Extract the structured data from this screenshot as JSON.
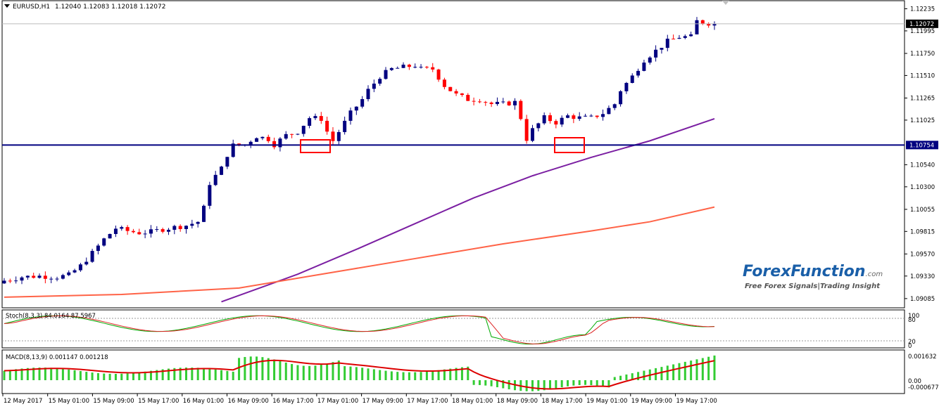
{
  "chart_data": {
    "type": "candlestick",
    "symbol_header": "EURUSD,H1",
    "ohlc_header": "1.12040 1.12083 1.12018 1.12072",
    "price_axis": {
      "ylim": [
        1.09,
        1.123
      ],
      "ticks": [
        "1.12235",
        "1.11995",
        "1.11750",
        "1.11510",
        "1.11265",
        "1.11025",
        "1.10540",
        "1.10300",
        "1.10055",
        "1.09815",
        "1.09570",
        "1.09330",
        "1.09085"
      ],
      "tick_values": [
        1.12235,
        1.11995,
        1.1175,
        1.1151,
        1.11265,
        1.11025,
        1.1054,
        1.103,
        1.10055,
        1.09815,
        1.0957,
        1.0933,
        1.09085
      ],
      "current_price_label": "1.12072",
      "current_price": 1.12072,
      "horizontal_level_label": "1.10754",
      "horizontal_level": 1.10754
    },
    "time_axis_labels": [
      "12 May 2017",
      "15 May 01:00",
      "15 May 09:00",
      "15 May 17:00",
      "16 May 01:00",
      "16 May 09:00",
      "16 May 17:00",
      "17 May 01:00",
      "17 May 09:00",
      "17 May 17:00",
      "18 May 01:00",
      "18 May 09:00",
      "18 May 17:00",
      "19 May 01:00",
      "19 May 09:00",
      "19 May 17:00"
    ],
    "close_path": [
      [
        0,
        1.0928
      ],
      [
        3,
        1.0932
      ],
      [
        6,
        1.0933
      ],
      [
        9,
        1.0932
      ],
      [
        11,
        1.0934
      ],
      [
        13,
        1.0944
      ],
      [
        15,
        1.0958
      ],
      [
        17,
        1.0973
      ],
      [
        19,
        1.0985
      ],
      [
        21,
        1.0982
      ],
      [
        23,
        1.098
      ],
      [
        25,
        1.0981
      ],
      [
        27,
        1.0984
      ],
      [
        29,
        1.0986
      ],
      [
        31,
        1.0988
      ],
      [
        33,
        1.0992
      ],
      [
        34,
        1.1007
      ],
      [
        35,
        1.1034
      ],
      [
        37,
        1.105
      ],
      [
        38,
        1.1065
      ],
      [
        39,
        1.1075
      ],
      [
        41,
        1.1076
      ],
      [
        43,
        1.1085
      ],
      [
        45,
        1.1082
      ],
      [
        46,
        1.1076
      ],
      [
        48,
        1.1086
      ],
      [
        50,
        1.109
      ],
      [
        52,
        1.1105
      ],
      [
        54,
        1.1104
      ],
      [
        55,
        1.109
      ],
      [
        56,
        1.108
      ],
      [
        57,
        1.109
      ],
      [
        59,
        1.111
      ],
      [
        61,
        1.1125
      ],
      [
        62,
        1.1135
      ],
      [
        64,
        1.115
      ],
      [
        66,
        1.1158
      ],
      [
        68,
        1.116
      ],
      [
        70,
        1.1162
      ],
      [
        71,
        1.1158
      ],
      [
        73,
        1.1158
      ],
      [
        75,
        1.114
      ],
      [
        77,
        1.113
      ],
      [
        79,
        1.1125
      ],
      [
        81,
        1.1125
      ],
      [
        83,
        1.112
      ],
      [
        85,
        1.112
      ],
      [
        87,
        1.1122
      ],
      [
        88,
        1.1105
      ],
      [
        89,
        1.1082
      ],
      [
        90,
        1.1092
      ],
      [
        92,
        1.1105
      ],
      [
        94,
        1.11
      ],
      [
        96,
        1.1107
      ],
      [
        98,
        1.1105
      ],
      [
        100,
        1.1105
      ],
      [
        102,
        1.111
      ],
      [
        104,
        1.112
      ],
      [
        105,
        1.1135
      ],
      [
        107,
        1.115
      ],
      [
        109,
        1.1168
      ],
      [
        111,
        1.1178
      ],
      [
        113,
        1.1188
      ],
      [
        115,
        1.1193
      ],
      [
        117,
        1.1193
      ],
      [
        118,
        1.121
      ],
      [
        120,
        1.1208
      ],
      [
        121,
        1.1207
      ]
    ],
    "moving_averages": [
      {
        "color": "#7b1fa2",
        "points": [
          [
            37,
            1.0905
          ],
          [
            50,
            1.0935
          ],
          [
            60,
            1.0962
          ],
          [
            70,
            1.099
          ],
          [
            80,
            1.1018
          ],
          [
            90,
            1.1042
          ],
          [
            100,
            1.1062
          ],
          [
            110,
            1.108
          ],
          [
            121,
            1.1104
          ]
        ]
      },
      {
        "color": "#ff6347",
        "points": [
          [
            0,
            1.091
          ],
          [
            20,
            1.0913
          ],
          [
            40,
            1.092
          ],
          [
            55,
            1.0936
          ],
          [
            70,
            1.0952
          ],
          [
            85,
            1.0968
          ],
          [
            100,
            1.0982
          ],
          [
            110,
            1.0992
          ],
          [
            121,
            1.1008
          ]
        ]
      }
    ],
    "highlight_boxes": [
      "rect-1",
      "rect-2"
    ],
    "stochastic": {
      "label": "Stoch(8,3,3) 84.0164 87.5967",
      "levels": [
        "100",
        "80",
        "20",
        "0"
      ],
      "main_color": "#00aa00",
      "signal_color": "#dd2222"
    },
    "macd": {
      "label": "MACD(8,13,9) 0.001147 0.001218",
      "levels": [
        "0.001632",
        "0.00",
        "-0.000677"
      ],
      "histogram_color": "#33cc33",
      "signal_color": "#dd0000"
    },
    "up_color": "#000080",
    "down_color": "#ff0000"
  },
  "watermark": {
    "brand": "ForexFunction",
    "brand_suffix": ".com",
    "tagline": "Free Forex Signals|Trading Insight"
  }
}
